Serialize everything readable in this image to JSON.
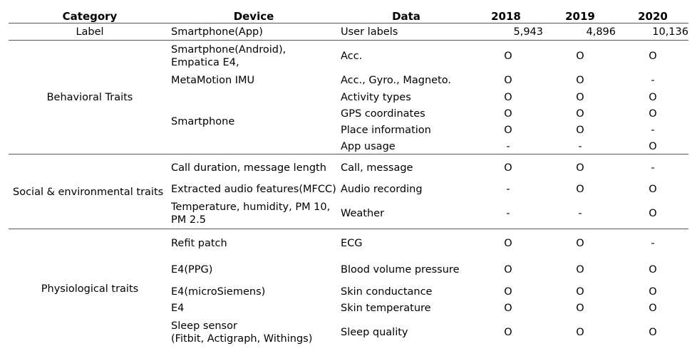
{
  "headers": {
    "category": "Category",
    "device": "Device",
    "data": "Data",
    "y2018": "2018",
    "y2019": "2019",
    "y2020": "2020"
  },
  "label_row": {
    "category": "Label",
    "device": "Smartphone(App)",
    "data": "User labels",
    "y2018": "5,943",
    "y2019": "4,896",
    "y2020": "10,136"
  },
  "behavioral": {
    "category": "Behavioral Traits",
    "device_android_line1": "Smartphone(Android),",
    "device_android_line2": "Empatica E4,",
    "device_imu": "MetaMotion IMU",
    "device_smartphone": "Smartphone",
    "rows": [
      {
        "data": "Acc.",
        "y2018": "O",
        "y2019": "O",
        "y2020": "O"
      },
      {
        "data": "Acc., Gyro., Magneto.",
        "y2018": "O",
        "y2019": "O",
        "y2020": "-"
      },
      {
        "data": "Activity types",
        "y2018": "O",
        "y2019": "O",
        "y2020": "O"
      },
      {
        "data": "GPS coordinates",
        "y2018": "O",
        "y2019": "O",
        "y2020": "O"
      },
      {
        "data": "Place information",
        "y2018": "O",
        "y2019": "O",
        "y2020": "-"
      },
      {
        "data": "App usage",
        "y2018": "-",
        "y2019": "-",
        "y2020": "O"
      }
    ]
  },
  "social": {
    "category": "Social & environmental traits",
    "rows": [
      {
        "device": "Call duration, message length",
        "data": "Call, message",
        "y2018": "O",
        "y2019": "O",
        "y2020": "-"
      },
      {
        "device": "Extracted audio features(MFCC)",
        "data": "Audio recording",
        "y2018": "-",
        "y2019": "O",
        "y2020": "O"
      },
      {
        "device_line1": "Temperature, humidity, PM 10,",
        "device_line2": "PM 2.5",
        "data": "Weather",
        "y2018": "-",
        "y2019": "-",
        "y2020": "O"
      }
    ]
  },
  "physiological": {
    "category": "Physiological traits",
    "rows": [
      {
        "device": "Refit patch",
        "data": "ECG",
        "y2018": "O",
        "y2019": "O",
        "y2020": "-"
      },
      {
        "device": "E4(PPG)",
        "data": "Blood volume pressure",
        "y2018": "O",
        "y2019": "O",
        "y2020": "O"
      },
      {
        "device": "E4(microSiemens)",
        "data": "Skin conductance",
        "y2018": "O",
        "y2019": "O",
        "y2020": "O"
      },
      {
        "device": "E4",
        "data": "Skin temperature",
        "y2018": "O",
        "y2019": "O",
        "y2020": "O"
      },
      {
        "device_line1": "Sleep sensor",
        "device_line2": "(Fitbit, Actigraph, Withings)",
        "data": "Sleep quality",
        "y2018": "O",
        "y2019": "O",
        "y2020": "O"
      }
    ]
  }
}
